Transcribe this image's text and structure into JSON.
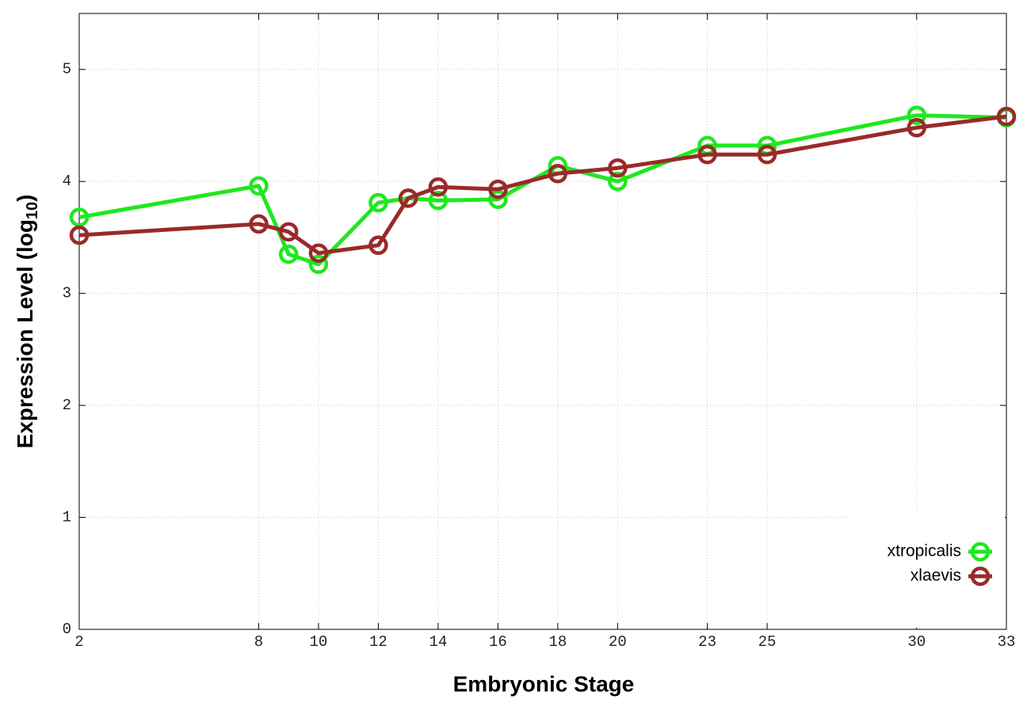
{
  "chart_data": {
    "type": "line",
    "x_label": "Embryonic Stage",
    "y_label": [
      "Expression Level (log",
      "10",
      ")"
    ],
    "x": [
      2,
      8,
      9,
      10,
      12,
      13,
      14,
      16,
      18,
      20,
      23,
      25,
      30,
      33
    ],
    "series": [
      {
        "name": "xtropicalis",
        "color": "#1ee81e",
        "values": [
          3.68,
          3.96,
          3.35,
          3.26,
          3.81,
          3.85,
          3.83,
          3.84,
          4.14,
          4.0,
          4.32,
          4.32,
          4.59,
          4.57
        ]
      },
      {
        "name": "xlaevis",
        "color": "#9a2a2a",
        "values": [
          3.52,
          3.62,
          3.55,
          3.36,
          3.43,
          3.85,
          3.95,
          3.93,
          4.07,
          4.12,
          4.24,
          4.24,
          4.48,
          4.58
        ]
      }
    ],
    "xlim": [
      2,
      33
    ],
    "xticks": [
      2,
      8,
      10,
      12,
      14,
      16,
      18,
      20,
      23,
      25,
      30,
      33
    ],
    "ylim": [
      0,
      5.5
    ],
    "yticks": [
      0,
      1,
      2,
      3,
      4,
      5
    ],
    "grid": true,
    "legend": "lower right"
  }
}
